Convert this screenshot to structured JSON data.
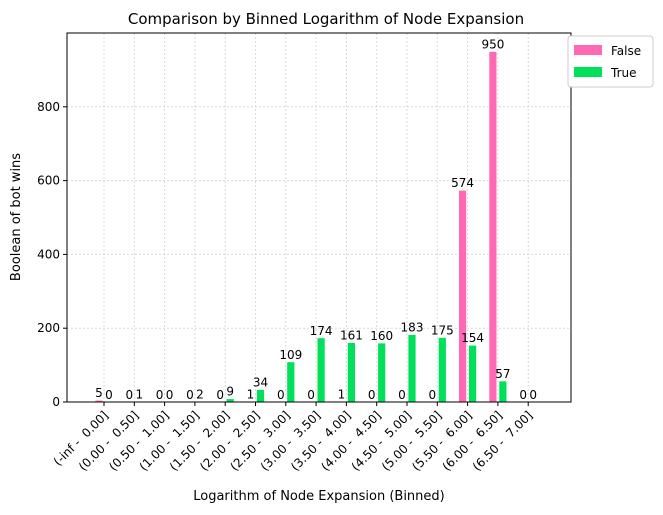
{
  "chart_data": {
    "type": "bar",
    "title": "Comparison by Binned Logarithm of Node Expansion",
    "xlabel": "Logarithm of Node Expansion (Binned)",
    "ylabel": "Boolean of bot wins",
    "categories": [
      "(-inf -  0.00]",
      "(0.00 -  0.50]",
      "(0.50 -  1.00]",
      "(1.00 -  1.50]",
      "(1.50 -  2.00]",
      "(2.00 -  2.50]",
      "(2.50 -  3.00]",
      "(3.00 -  3.50]",
      "(3.50 -  4.00]",
      "(4.00 -  4.50]",
      "(4.50 -  5.00]",
      "(5.00 -  5.50]",
      "(5.50 -  6.00]",
      "(6.00 -  6.50]",
      "(6.50 -  7.00]"
    ],
    "series": [
      {
        "name": "False",
        "color": "#ff69b4",
        "values": [
          5,
          0,
          0,
          0,
          0,
          1,
          0,
          0,
          1,
          0,
          0,
          0,
          574,
          950,
          0
        ]
      },
      {
        "name": "True",
        "color": "#00e05a",
        "values": [
          0,
          1,
          0,
          2,
          9,
          34,
          109,
          174,
          161,
          160,
          183,
          175,
          154,
          57,
          0
        ]
      }
    ],
    "ylim": [
      0,
      1000
    ],
    "yticks": [
      0,
      200,
      400,
      600,
      800
    ],
    "grid": true,
    "legend_position": "outside top-right"
  }
}
